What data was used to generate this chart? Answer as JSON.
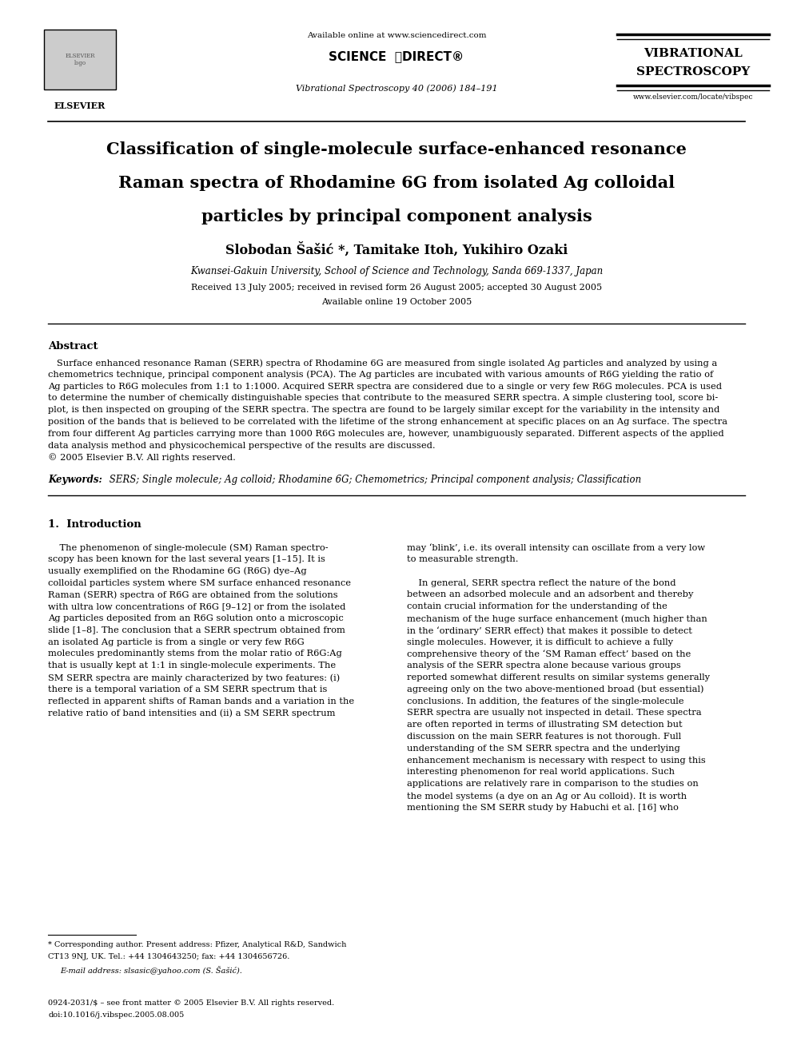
{
  "bg_color": "#ffffff",
  "page_width": 9.92,
  "page_height": 13.23,
  "dpi": 100,
  "header": {
    "available_online": "Available online at www.sciencedirect.com",
    "sciencedirect": "SCIENCE  DIRECT®",
    "journal_line": "Vibrational Spectroscopy 40 (2006) 184–191",
    "journal_name_top": "VIBRATIONAL",
    "journal_name_bot": "SPECTROSCOPY",
    "journal_url": "www.elsevier.com/locate/vibspec",
    "elsevier": "ELSEVIER"
  },
  "title_line1": "Classification of single-molecule surface-enhanced resonance",
  "title_line2": "Raman spectra of Rhodamine 6G from isolated Ag colloidal",
  "title_line3": "particles by principal component analysis",
  "authors": "Slobodan Šašić *, Tamitake Itoh, Yukihiro Ozaki",
  "affiliation": "Kwansei-Gakuin University, School of Science and Technology, Sanda 669-1337, Japan",
  "received": "Received 13 July 2005; received in revised form 26 August 2005; accepted 30 August 2005",
  "available": "Available online 19 October 2005",
  "abstract_title": "Abstract",
  "abstract_lines": [
    "   Surface enhanced resonance Raman (SERR) spectra of Rhodamine 6G are measured from single isolated Ag particles and analyzed by using a",
    "chemometrics technique, principal component analysis (PCA). The Ag particles are incubated with various amounts of R6G yielding the ratio of",
    "Ag particles to R6G molecules from 1:1 to 1:1000. Acquired SERR spectra are considered due to a single or very few R6G molecules. PCA is used",
    "to determine the number of chemically distinguishable species that contribute to the measured SERR spectra. A simple clustering tool, score bi-",
    "plot, is then inspected on grouping of the SERR spectra. The spectra are found to be largely similar except for the variability in the intensity and",
    "position of the bands that is believed to be correlated with the lifetime of the strong enhancement at specific places on an Ag surface. The spectra",
    "from four different Ag particles carrying more than 1000 R6G molecules are, however, unambiguously separated. Different aspects of the applied",
    "data analysis method and physicochemical perspective of the results are discussed.",
    "© 2005 Elsevier B.V. All rights reserved."
  ],
  "keywords_label": "Keywords:",
  "keywords_text": " SERS; Single molecule; Ag colloid; Rhodamine 6G; Chemometrics; Principal component analysis; Classification",
  "section1_title": "1.  Introduction",
  "col1_lines": [
    "    The phenomenon of single-molecule (SM) Raman spectro-",
    "scopy has been known for the last several years [1–15]. It is",
    "usually exemplified on the Rhodamine 6G (R6G) dye–Ag",
    "colloidal particles system where SM surface enhanced resonance",
    "Raman (SERR) spectra of R6G are obtained from the solutions",
    "with ultra low concentrations of R6G [9–12] or from the isolated",
    "Ag particles deposited from an R6G solution onto a microscopic",
    "slide [1–8]. The conclusion that a SERR spectrum obtained from",
    "an isolated Ag particle is from a single or very few R6G",
    "molecules predominantly stems from the molar ratio of R6G:Ag",
    "that is usually kept at 1:1 in single-molecule experiments. The",
    "SM SERR spectra are mainly characterized by two features: (i)",
    "there is a temporal variation of a SM SERR spectrum that is",
    "reflected in apparent shifts of Raman bands and a variation in the",
    "relative ratio of band intensities and (ii) a SM SERR spectrum"
  ],
  "col2_lines": [
    "may ‘blink’, i.e. its overall intensity can oscillate from a very low",
    "to measurable strength.",
    "",
    "    In general, SERR spectra reflect the nature of the bond",
    "between an adsorbed molecule and an adsorbent and thereby",
    "contain crucial information for the understanding of the",
    "mechanism of the huge surface enhancement (much higher than",
    "in the ‘ordinary’ SERR effect) that makes it possible to detect",
    "single molecules. However, it is difficult to achieve a fully",
    "comprehensive theory of the ‘SM Raman effect’ based on the",
    "analysis of the SERR spectra alone because various groups",
    "reported somewhat different results on similar systems generally",
    "agreeing only on the two above-mentioned broad (but essential)",
    "conclusions. In addition, the features of the single-molecule",
    "SERR spectra are usually not inspected in detail. These spectra",
    "are often reported in terms of illustrating SM detection but",
    "discussion on the main SERR features is not thorough. Full",
    "understanding of the SM SERR spectra and the underlying",
    "enhancement mechanism is necessary with respect to using this",
    "interesting phenomenon for real world applications. Such",
    "applications are relatively rare in comparison to the studies on",
    "the model systems (a dye on an Ag or Au colloid). It is worth",
    "mentioning the SM SERR study by Habuchi et al. [16] who"
  ],
  "footnote_line1": "* Corresponding author. Present address: Pfizer, Analytical R&D, Sandwich",
  "footnote_line2": "CT13 9NJ, UK. Tel.: +44 1304643250; fax: +44 1304656726.",
  "footnote_email": "E-mail address: slsasic@yahoo.com (S. Šašić).",
  "copyright_line1": "0924-2031/$ – see front matter © 2005 Elsevier B.V. All rights reserved.",
  "copyright_line2": "doi:10.1016/j.vibspec.2005.08.005"
}
